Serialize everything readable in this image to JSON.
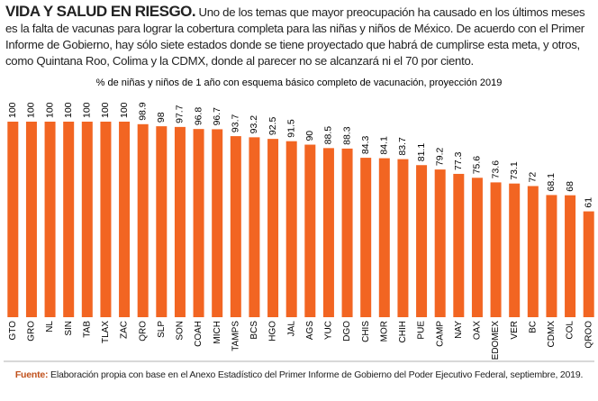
{
  "chart_data": {
    "type": "bar",
    "headline": "VIDA Y SALUD EN RIESGO.",
    "intro": "Uno de los temas que mayor preocupación ha causado en los últimos meses es la falta de vacunas para lograr la cobertura completa para las niñas y niños de México. De acuerdo con el Primer Informe de Gobierno, hay sólo siete estados donde se tiene proyectado que habrá de cumplirse esta meta, y otros, como Quintana Roo, Colima y la CDMX, donde al parecer no se alcanzará ni el 70 por ciento.",
    "title": "% de niñas y niños de 1 año con esquema básico completo de vacunación, proyección 2019",
    "categories": [
      "GTO",
      "GRO",
      "NL",
      "SIN",
      "TAB",
      "TLAX",
      "ZAC",
      "QRO",
      "SLP",
      "SON",
      "COAH",
      "MICH",
      "TAMPS",
      "BCS",
      "HGO",
      "JAL",
      "AGS",
      "YUC",
      "DGO",
      "CHIS",
      "MOR",
      "CHIH",
      "PUE",
      "CAMP",
      "NAY",
      "OAX",
      "EDOMEX",
      "VER",
      "BC",
      "CDMX",
      "COL",
      "QROO"
    ],
    "values": [
      100,
      100,
      100,
      100,
      100,
      100,
      100,
      98.9,
      98,
      97.7,
      96.8,
      96.7,
      93.7,
      93.2,
      92.5,
      91.5,
      90,
      88.5,
      88.3,
      84.3,
      84.1,
      83.7,
      81.1,
      79.2,
      77.3,
      75.6,
      73.6,
      73.1,
      72,
      68.1,
      68,
      61
    ],
    "color": "#f26522",
    "ylim": [
      15,
      100
    ],
    "source_label": "Fuente:",
    "source": "Elaboración propia con base en el Anexo Estadístico del Primer Informe de Gobierno del Poder Ejecutivo Federal, septiembre, 2019."
  }
}
